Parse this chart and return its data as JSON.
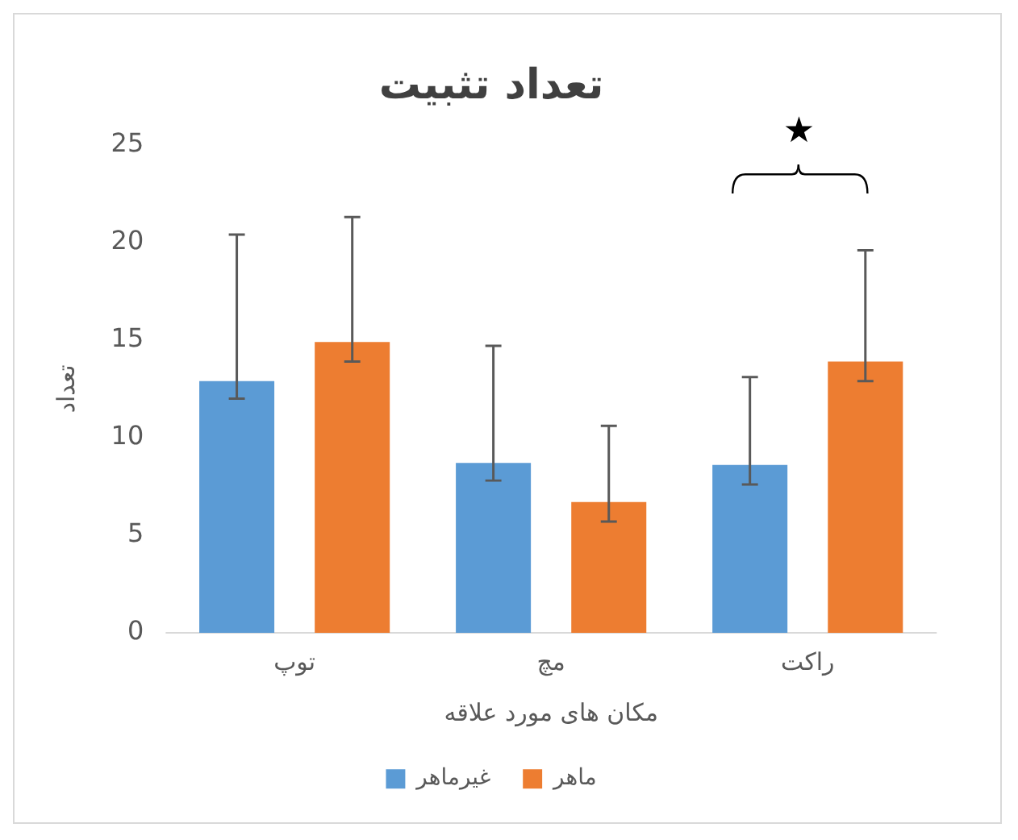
{
  "chart_data": {
    "type": "bar",
    "title": "تعداد تثبیت",
    "xlabel": "مکان های مورد علاقه",
    "ylabel": "تعداد",
    "categories": [
      "توپ",
      "مچ",
      "راکت"
    ],
    "series": [
      {
        "name": "غیرماهر",
        "color": "#5b9bd5",
        "values": [
          12.9,
          8.7,
          8.6
        ],
        "errors": [
          [
            12,
            20.4
          ],
          [
            7.8,
            14.7
          ],
          [
            7.6,
            13.1
          ]
        ]
      },
      {
        "name": "ماهر",
        "color": "#ed7d31",
        "values": [
          14.9,
          6.7,
          13.9
        ],
        "errors": [
          [
            13.9,
            21.3
          ],
          [
            5.7,
            10.6
          ],
          [
            12.9,
            19.6
          ]
        ]
      }
    ],
    "ylim": [
      0,
      25
    ],
    "yticks": [
      0,
      5,
      10,
      15,
      20,
      25
    ],
    "grid": false,
    "legend": "bottom",
    "annotations": [
      "★"
    ]
  }
}
